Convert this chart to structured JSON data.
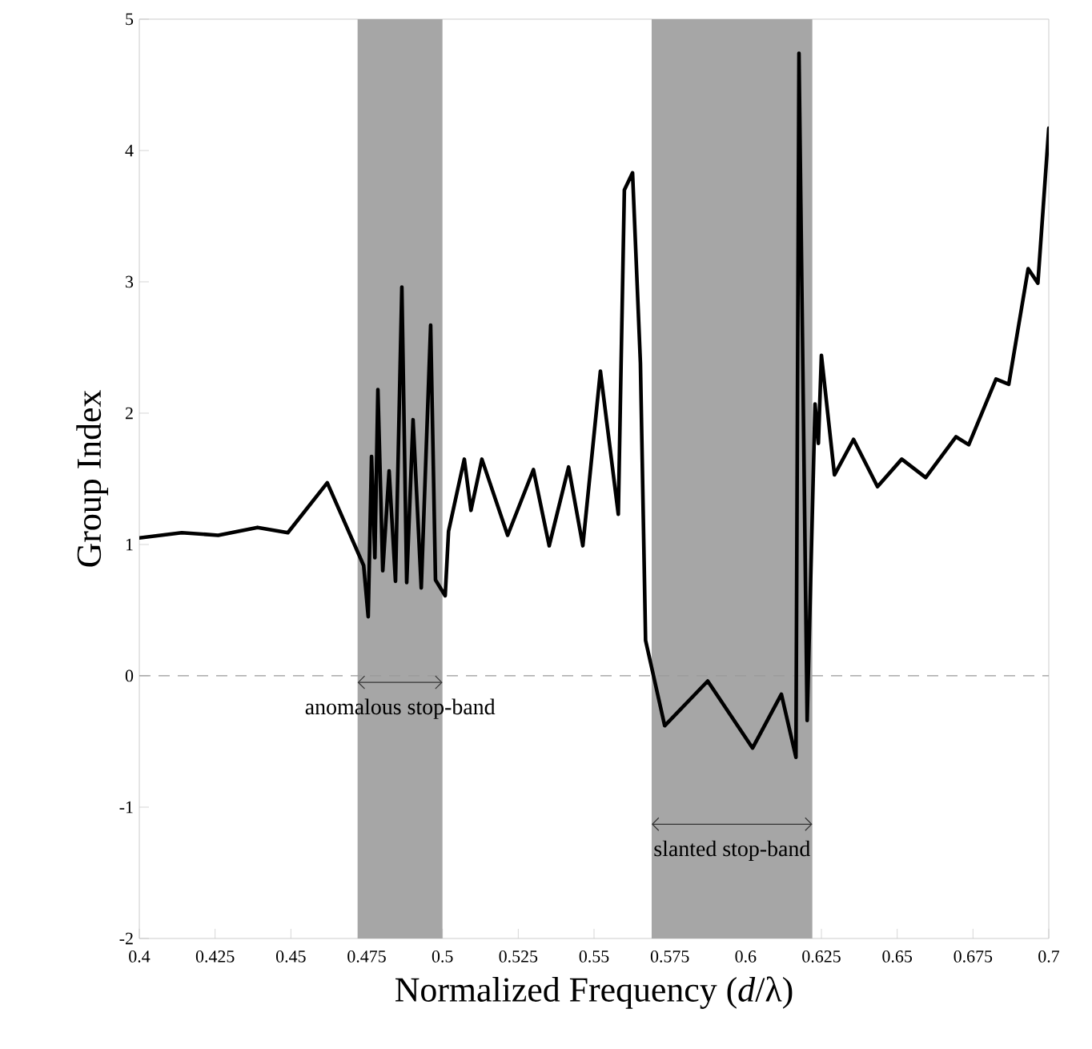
{
  "chart_data": {
    "type": "line",
    "xlabel": "Normalized Frequency (*d*/λ)",
    "ylabel": "Group Index",
    "x": [
      0.4,
      0.414,
      0.426,
      0.439,
      0.449,
      0.462,
      0.474,
      0.4755,
      0.4766,
      0.4777,
      0.4787,
      0.4803,
      0.4824,
      0.4845,
      0.4866,
      0.4882,
      0.4903,
      0.493,
      0.4961,
      0.4977,
      0.5009,
      0.502,
      0.5072,
      0.5094,
      0.513,
      0.5215,
      0.53,
      0.5352,
      0.5416,
      0.5463,
      0.5521,
      0.558,
      0.56,
      0.5627,
      0.5653,
      0.567,
      0.5733,
      0.5875,
      0.6023,
      0.6118,
      0.6166,
      0.6176,
      0.6203,
      0.6229,
      0.624,
      0.625,
      0.6293,
      0.6356,
      0.6435,
      0.6515,
      0.6594,
      0.6694,
      0.6736,
      0.6826,
      0.6868,
      0.6932,
      0.6964,
      0.7
    ],
    "values": [
      1.05,
      1.09,
      1.07,
      1.13,
      1.09,
      1.47,
      0.84,
      0.45,
      1.67,
      0.9,
      2.18,
      0.8,
      1.56,
      0.72,
      2.96,
      0.71,
      1.95,
      0.67,
      2.67,
      0.73,
      0.61,
      1.1,
      1.65,
      1.26,
      1.65,
      1.07,
      1.57,
      0.99,
      1.59,
      0.99,
      2.32,
      1.23,
      3.7,
      3.83,
      2.38,
      0.27,
      -0.38,
      -0.04,
      -0.55,
      -0.14,
      -0.62,
      4.74,
      -0.34,
      2.07,
      1.77,
      2.44,
      1.53,
      1.8,
      1.44,
      1.65,
      1.51,
      1.82,
      1.76,
      2.26,
      2.22,
      3.1,
      2.99,
      4.17
    ],
    "color": "#000000",
    "xlim": [
      0.4,
      0.7
    ],
    "ylim": [
      -2,
      5
    ],
    "xticks": [
      0.4,
      0.425,
      0.45,
      0.475,
      0.5,
      0.525,
      0.55,
      0.575,
      0.6,
      0.625,
      0.65,
      0.675,
      0.7
    ],
    "yticks": [
      -2,
      -1,
      0,
      1,
      2,
      3,
      4,
      5
    ],
    "ref_lines": [
      {
        "axis": "y",
        "value": 0,
        "color": "#999999",
        "line_style": "dashed"
      }
    ],
    "bands": [
      {
        "axis": "x",
        "from": 0.472,
        "to": 0.5,
        "label": "anomalous stop-band",
        "color": "#a6a6a6"
      },
      {
        "axis": "x",
        "from": 0.569,
        "to": 0.622,
        "label": "slanted stop-band",
        "color": "#a6a6a6"
      }
    ],
    "marker": "none",
    "line_style": "solid"
  }
}
